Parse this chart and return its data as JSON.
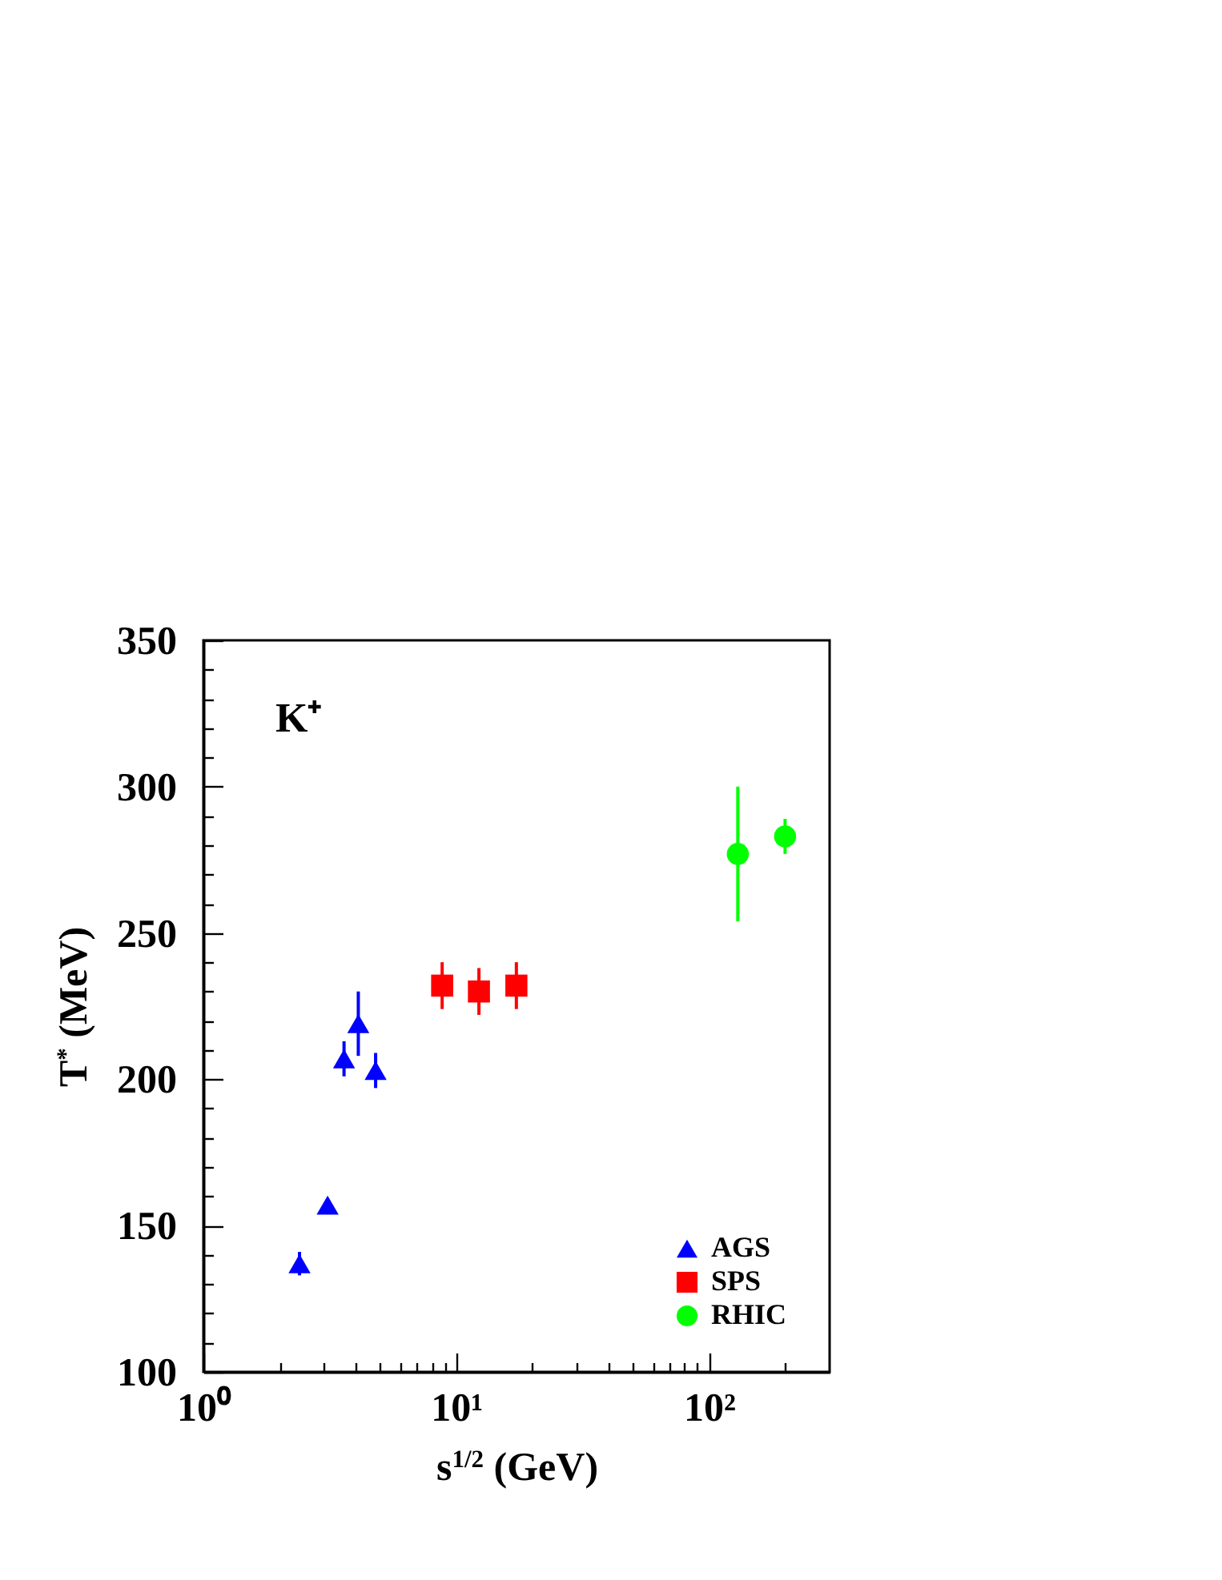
{
  "chart_data": {
    "type": "scatter",
    "xlabel": "s$^{1/2}$ (GeV)",
    "ylabel": "T$^{*}$ (MeV)",
    "annotations": [
      "K⁺"
    ],
    "log": "x",
    "xlim": [
      1,
      300
    ],
    "ylim": [
      100,
      350
    ],
    "xticks": [
      {
        "value": 1,
        "label": "10⁰"
      },
      {
        "value": 2,
        "label": null
      },
      {
        "value": 3,
        "label": null
      },
      {
        "value": 4,
        "label": null
      },
      {
        "value": 5,
        "label": null
      },
      {
        "value": 6,
        "label": null
      },
      {
        "value": 7,
        "label": null
      },
      {
        "value": 8,
        "label": null
      },
      {
        "value": 9,
        "label": null
      },
      {
        "value": 10,
        "label": "10¹"
      },
      {
        "value": 20,
        "label": null
      },
      {
        "value": 30,
        "label": null
      },
      {
        "value": 40,
        "label": null
      },
      {
        "value": 50,
        "label": null
      },
      {
        "value": 60,
        "label": null
      },
      {
        "value": 70,
        "label": null
      },
      {
        "value": 80,
        "label": null
      },
      {
        "value": 90,
        "label": null
      },
      {
        "value": 100,
        "label": "10²"
      },
      {
        "value": 200,
        "label": null
      }
    ],
    "yticks": [
      100,
      {
        "value": 110,
        "label": null
      },
      {
        "value": 120,
        "label": null
      },
      {
        "value": 130,
        "label": null
      },
      {
        "value": 140,
        "label": null
      },
      150,
      {
        "value": 160,
        "label": null
      },
      {
        "value": 170,
        "label": null
      },
      {
        "value": 180,
        "label": null
      },
      {
        "value": 190,
        "label": null
      },
      200,
      {
        "value": 210,
        "label": null
      },
      {
        "value": 220,
        "label": null
      },
      {
        "value": 230,
        "label": null
      },
      {
        "value": 240,
        "label": null
      },
      250,
      {
        "value": 260,
        "label": null
      },
      {
        "value": 270,
        "label": null
      },
      {
        "value": 280,
        "label": null
      },
      {
        "value": 290,
        "label": null
      },
      300,
      {
        "value": 310,
        "label": null
      },
      {
        "value": 320,
        "label": null
      },
      {
        "value": 330,
        "label": null
      },
      {
        "value": 340,
        "label": null
      },
      350
    ],
    "legend": "bottom right",
    "series": [
      {
        "name": "AGS",
        "color": "#0000ff",
        "marker": "triangle",
        "x": [
          2.4,
          3.1,
          3.6,
          4.1,
          4.8
        ],
        "values": [
          137,
          157,
          207,
          219,
          203
        ],
        "errors": [
          4,
          null,
          6,
          11,
          6
        ]
      },
      {
        "name": "SPS",
        "color": "#ff0000",
        "marker": "square",
        "x": [
          8.8,
          12.3,
          17.3
        ],
        "values": [
          232,
          230,
          232
        ],
        "errors": [
          8,
          8,
          8
        ]
      },
      {
        "name": "RHIC",
        "color": "#00ff00",
        "marker": "circle",
        "x": [
          130,
          200
        ],
        "values": [
          277,
          283
        ],
        "errors": [
          23,
          6
        ]
      }
    ]
  }
}
